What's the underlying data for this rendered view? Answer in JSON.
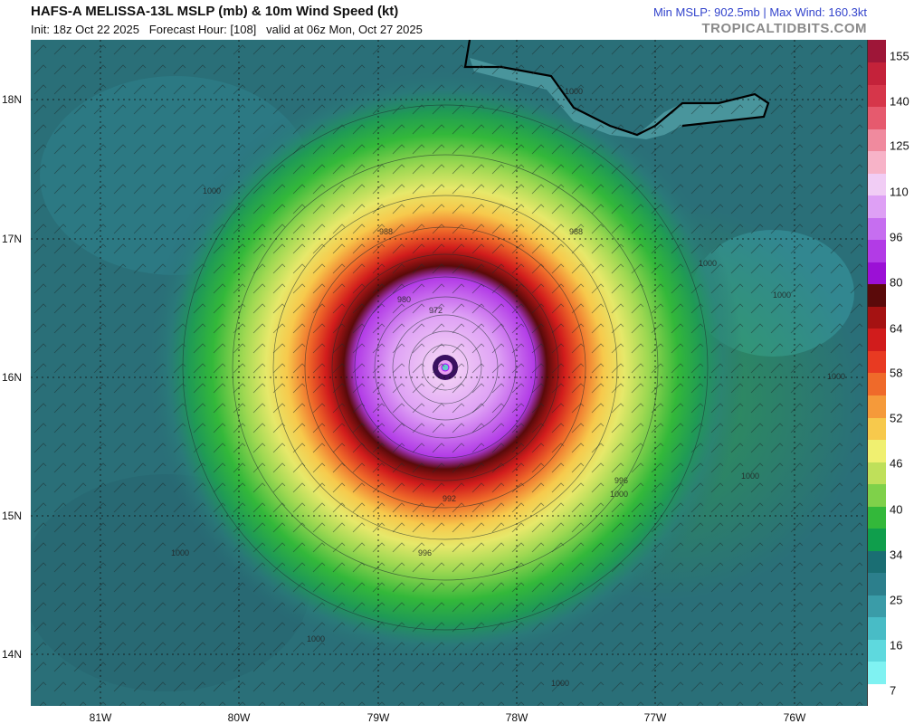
{
  "header": {
    "title": "HAFS-A MELISSA-13L MSLP (mb) & 10m Wind Speed (kt)",
    "init_line": "Init: 18z Oct 22 2025   Forecast Hour: [108]   valid at 06z Mon, Oct 27 2025",
    "stats": "Min MSLP: 902.5mb | Max Wind: 160.3kt",
    "site": "TROPICALTIDBITS.COM"
  },
  "map": {
    "lat_labels": [
      "18N",
      "17N",
      "16N",
      "15N",
      "14N"
    ],
    "lon_labels": [
      "81W",
      "80W",
      "79W",
      "78W",
      "77W",
      "76W"
    ],
    "isobar_labels": [
      "1000",
      "1000",
      "988",
      "988",
      "980",
      "972",
      "1000",
      "1000",
      "996",
      "1000",
      "1000",
      "1000",
      "1000",
      "996",
      "992",
      "1000",
      "1000"
    ],
    "background_color": "#2a6f78",
    "land_outline_color": "#000000"
  },
  "colorbar": {
    "labels": [
      "155",
      "140",
      "125",
      "110",
      "96",
      "80",
      "64",
      "58",
      "52",
      "46",
      "40",
      "34",
      "25",
      "16",
      "7"
    ],
    "colors": [
      "#ffffff",
      "#7ff2f2",
      "#5ed9de",
      "#48bcc6",
      "#3a9ca8",
      "#2c7f8c",
      "#1a6e73",
      "#0f9e4c",
      "#33b83a",
      "#7fd14a",
      "#bfe05a",
      "#f0f070",
      "#f7c94c",
      "#f59a3a",
      "#ef6a2a",
      "#e83a22",
      "#d11c1c",
      "#a51212",
      "#5a0a0a",
      "#9b10d6",
      "#b23be6",
      "#c66ef0",
      "#dea0f5",
      "#f1cdf5",
      "#f7b3c8",
      "#f08a9e",
      "#e65a6e",
      "#d6364a",
      "#c4223a",
      "#9e1638"
    ]
  }
}
